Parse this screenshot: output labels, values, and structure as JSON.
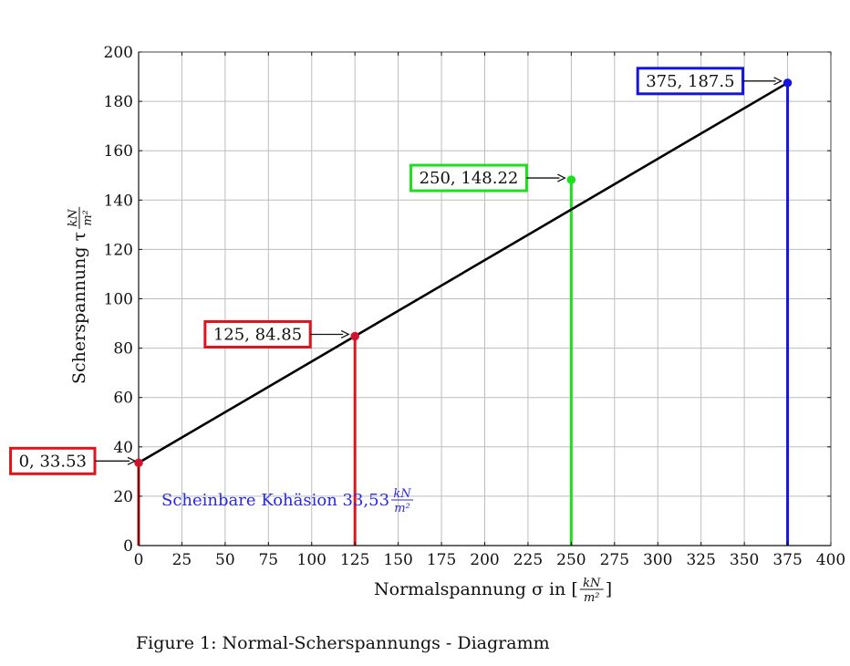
{
  "chart_data": {
    "type": "line",
    "x": [
      0,
      125,
      250,
      375
    ],
    "y": [
      33.53,
      84.85,
      148.22,
      187.5
    ],
    "xlim": [
      0,
      400
    ],
    "ylim": [
      0,
      200
    ],
    "xticks": [
      0,
      25,
      50,
      75,
      100,
      125,
      150,
      175,
      200,
      225,
      250,
      275,
      300,
      325,
      350,
      375,
      400
    ],
    "yticks": [
      0,
      20,
      40,
      60,
      80,
      100,
      120,
      140,
      160,
      180,
      200
    ],
    "grid": true,
    "xlabel": {
      "prefix": "Normalspannung σ in [",
      "frac_num": "kN",
      "frac_den": "m²",
      "suffix": "]"
    },
    "ylabel": {
      "prefix": "Scherspannung τ ",
      "frac_num": "kN",
      "frac_den": "m²"
    },
    "fit_line": {
      "x": [
        0,
        375
      ],
      "y": [
        33.53,
        187.5
      ],
      "color": "#000000"
    },
    "points": [
      {
        "x": 0,
        "y": 33.53,
        "label": "0, 33.53",
        "color": "#e0141c",
        "marker_color": "#c8143c"
      },
      {
        "x": 125,
        "y": 84.85,
        "label": "125, 84.85",
        "color": "#e0141c",
        "marker_color": "#c8143c"
      },
      {
        "x": 250,
        "y": 148.22,
        "label": "250, 148.22",
        "color": "#1be01b",
        "marker_color": "#1be01b"
      },
      {
        "x": 375,
        "y": 187.5,
        "label": "375, 187.5",
        "color": "#1414e0",
        "marker_color": "#1414e0"
      }
    ],
    "annotation": {
      "text": "Scheinbare Kohäsion 33,53 ",
      "frac_num": "kN",
      "frac_den": "m²",
      "color": "#2a2ae0"
    }
  },
  "caption": "Figure 1: Normal-Scherspannungs - Diagramm"
}
